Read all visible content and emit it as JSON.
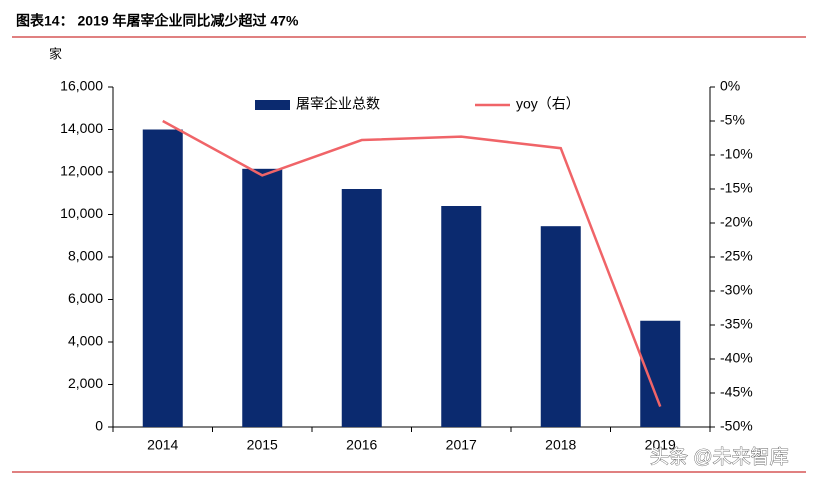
{
  "chart_data": {
    "type": "bar",
    "title": "图表14：  2019 年屠宰企业同比减少超过 47%",
    "y_label": "家",
    "watermark": "头条 @未来智库",
    "categories": [
      "2014",
      "2015",
      "2016",
      "2017",
      "2018",
      "2019"
    ],
    "series": [
      {
        "name": "屠宰企业总数",
        "type": "bar",
        "color": "#0b2a6f",
        "values": [
          14000,
          12150,
          11200,
          10400,
          9450,
          5000
        ]
      },
      {
        "name": "yoy（右）",
        "type": "line",
        "axis": "y2",
        "color": "#f06468",
        "values": [
          -5,
          -13,
          -7.8,
          -7.3,
          -9,
          -47
        ]
      }
    ],
    "ylim": [
      0,
      16000
    ],
    "yticks": [
      0,
      {
        "value": 2000,
        "label": "2,000"
      },
      {
        "value": 4000,
        "label": "4,000"
      },
      {
        "value": 6000,
        "label": "6,000"
      },
      {
        "value": 8000,
        "label": "8,000"
      },
      {
        "value": 10000,
        "label": "10,000"
      },
      {
        "value": 12000,
        "label": "12,000"
      },
      {
        "value": 14000,
        "label": "14,000"
      },
      {
        "value": 16000,
        "label": "16,000"
      }
    ],
    "y2lim": [
      -50,
      0
    ],
    "y2ticks": [
      {
        "value": -50,
        "label": "-50%"
      },
      {
        "value": -45,
        "label": "-45%"
      },
      {
        "value": -40,
        "label": "-40%"
      },
      {
        "value": -35,
        "label": "-35%"
      },
      {
        "value": -30,
        "label": "-30%"
      },
      {
        "value": -25,
        "label": "-25%"
      },
      {
        "value": -20,
        "label": "-20%"
      },
      {
        "value": -15,
        "label": "-15%"
      },
      {
        "value": -10,
        "label": "-10%"
      },
      {
        "value": -5,
        "label": "-5%"
      },
      {
        "value": 0,
        "label": "0%"
      }
    ],
    "grid": false
  }
}
